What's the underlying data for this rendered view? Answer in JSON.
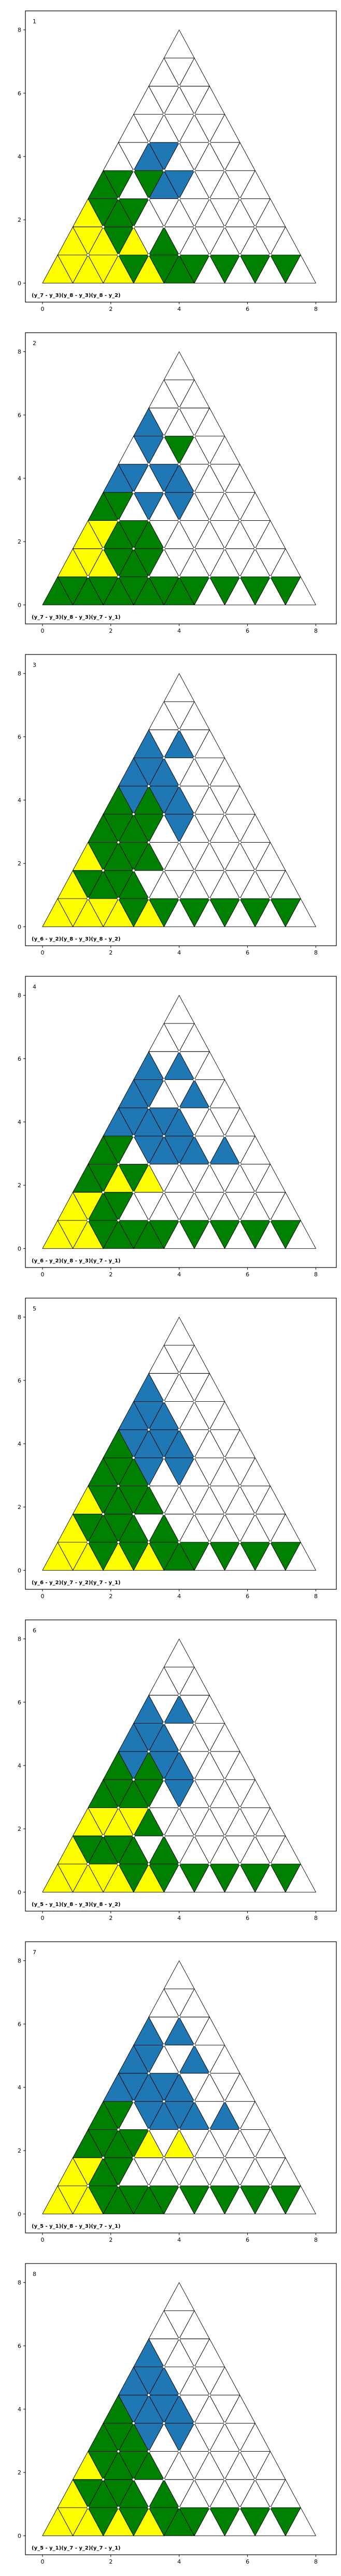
{
  "colors": {
    "yellow": "#ffff00",
    "green": "#008000",
    "blue": "#1f77b4",
    "gray": "#808080",
    "white": "#ffffff"
  },
  "axes": {
    "xlim": [
      -0.5,
      8.6
    ],
    "ylim": [
      -0.6,
      8.6
    ],
    "x_ticks": [
      0,
      2,
      4,
      6,
      8
    ],
    "y_ticks": [
      0,
      2,
      4,
      6,
      8
    ]
  },
  "panels": [
    {
      "number": "1",
      "formula": "(y_7 - y_3)(y_8 - y_3)(y_8 - y_2)",
      "up": [
        "yyyygwwww",
        "yyygwwww",
        "ygwwwww",
        "gwbwww",
        "wbwww",
        "wwww",
        "www",
        "ww",
        "w"
      ],
      "down": [
        "yygggggg",
        "ygwwwww",
        "ggwwww",
        "ggbww",
        "wbww",
        "www",
        "ww",
        "w"
      ]
    },
    {
      "number": "2",
      "formula": "(y_7 - y_3)(y_8 - y_3)(y_7 - y_1)",
      "up": [
        "gggggwwww",
        "yygwwww",
        "yggwwww",
        "gwwwww",
        "bwbww",
        "wwww",
        "bww",
        "ww",
        "w"
      ],
      "down": [
        "gggggggg",
        "yggwwwww",
        "ygwwww",
        "gbbwww",
        "bbww",
        "bgw",
        "ww",
        "w"
      ]
    },
    {
      "number": "3",
      "formula": "(y_6 - y_2)(y_8 - y_3)(y_8 - y_2)",
      "up": [
        "yyyywwwww",
        "yggwwwww",
        "yggwwww",
        "ggwwww",
        "ggbww",
        "bbwww",
        "bbw",
        "ww",
        "w"
      ],
      "down": [
        "yyggggggg",
        "ggwwwww",
        "ggwwww",
        "ggbww",
        "bbww",
        "bww",
        "ww",
        "w"
      ]
    },
    {
      "number": "4",
      "formula": "(y_6 - y_2)(y_8 - y_3)(y_7 - y_1)",
      "up": [
        "yyggwwwww",
        "ygwwwwww",
        "gyywwww",
        "gwbbbw",
        "bbbww",
        "bwbw",
        "bbw",
        "ww",
        "w"
      ],
      "down": [
        "ygggggggg",
        "ygwwwww",
        "ggwwww",
        "gbbww",
        "bbww",
        "bww",
        "ww",
        "w"
      ]
    },
    {
      "number": "5",
      "formula": "(y_6 - y_2)(y_7 - y_2)(y_7 - y_1)",
      "up": [
        "yyyygwwww",
        "ygggwwww",
        "yggwwww",
        "ggwwww",
        "gbbww",
        "bbwww",
        "bww",
        "ww",
        "w"
      ],
      "down": [
        "yggggggg",
        "ggwwwww",
        "ggwwww",
        "gbbww",
        "bbww",
        "bww",
        "ww",
        "w"
      ]
    },
    {
      "number": "6",
      "formula": "(y_5 - y_1)(y_8 - y_3)(y_8 - y_2)",
      "up": [
        "yyyywwwww",
        "ygggwwww",
        "yygwwww",
        "ggwwww",
        "ggbww",
        "bbwww",
        "bbw",
        "ww",
        "w"
      ],
      "down": [
        "yygggggg",
        "ggwwwww",
        "yywwww",
        "ggbww",
        "bbww",
        "bww",
        "ww",
        "w"
      ]
    },
    {
      "number": "7",
      "formula": "(y_5 - y_1)(y_8 - y_3)(y_7 - y_1)",
      "up": [
        "yyggwwwww",
        "ygwwwwww",
        "ggyywww",
        "gwbbbw",
        "bbbww",
        "bwbw",
        "bbw",
        "ww",
        "w"
      ],
      "down": [
        "ygggggggg",
        "ygwwwww",
        "ggwwww",
        "gbbww",
        "bbww",
        "bww",
        "ww",
        "w"
      ]
    },
    {
      "number": "8",
      "formula": "(y_5 - y_1)(y_7 - y_2)(y_7 - y_1)",
      "up": [
        "yyyygwwww",
        "ygggwwww",
        "yggwwww",
        "ggwwww",
        "gbbww",
        "bbwww",
        "bww",
        "ww",
        "w"
      ],
      "down": [
        "yggggggg",
        "ggwwwww",
        "ggwwww",
        "gbbww",
        "bbww",
        "bww",
        "ww",
        "w"
      ]
    }
  ]
}
